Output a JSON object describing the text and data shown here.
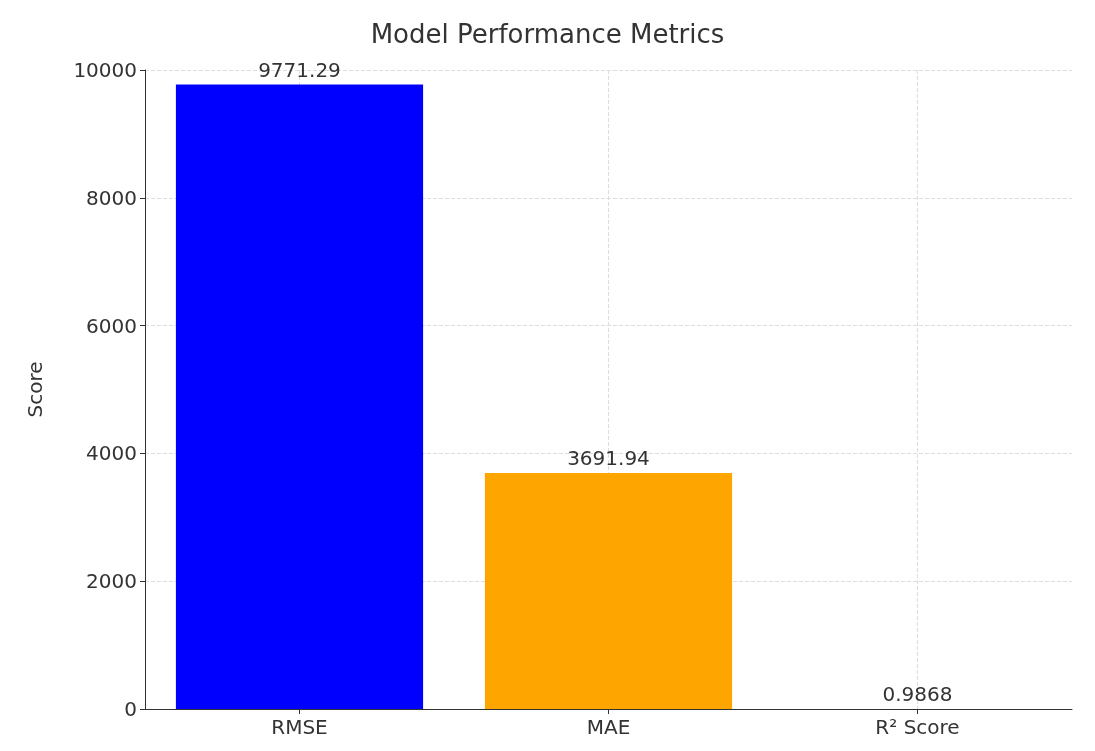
{
  "chart_data": {
    "type": "bar",
    "title": "Model Performance Metrics",
    "ylabel": "Score",
    "categories": [
      "RMSE",
      "MAE",
      "R² Score"
    ],
    "values": [
      9771.29,
      3691.94,
      0.9868
    ],
    "colors": [
      "#0000ff",
      "#ffa500",
      "#008000"
    ],
    "ylim": [
      0,
      10000
    ],
    "yticks": [
      0,
      2000,
      4000,
      6000,
      8000,
      10000
    ],
    "grid": true,
    "data_labels": true
  }
}
